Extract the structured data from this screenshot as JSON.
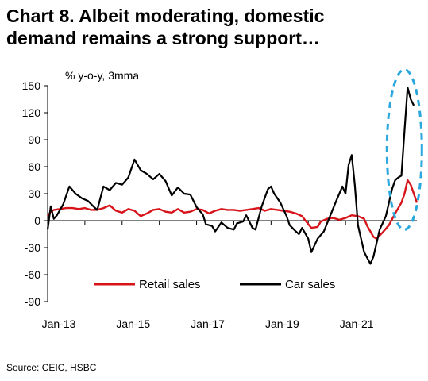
{
  "title_line1": "Chart 8. Albeit moderating, domestic",
  "title_line2": "demand remains a strong support…",
  "source": "Source: CEIC, HSBC",
  "chart_data": {
    "type": "line",
    "unit_note": "% y-o-y, 3mma",
    "ylim": [
      -90,
      150
    ],
    "yticks": [
      "150",
      "120",
      "90",
      "60",
      "30",
      "0",
      "-30",
      "-60",
      "-90"
    ],
    "xlim": [
      "2013-01",
      "2022-12"
    ],
    "xticks": [
      {
        "label": "Jan-13",
        "date": "2013-01"
      },
      {
        "label": "Jan-15",
        "date": "2015-01"
      },
      {
        "label": "Jan-17",
        "date": "2017-01"
      },
      {
        "label": "Jan-19",
        "date": "2019-01"
      },
      {
        "label": "Jan-21",
        "date": "2021-01"
      }
    ],
    "grid": false,
    "legend_position": "bottom",
    "highlight": "dashed ellipse around latest car sales spike",
    "colors": {
      "retail": "#d7141a",
      "car": "#000000",
      "highlight": "#2aa7dd"
    },
    "series": [
      {
        "name": "Retail sales",
        "color": "#d7141a",
        "points": [
          [
            "2013-01",
            5
          ],
          [
            "2013-02",
            10
          ],
          [
            "2013-03",
            12
          ],
          [
            "2013-05",
            13
          ],
          [
            "2013-07",
            14
          ],
          [
            "2013-09",
            14
          ],
          [
            "2013-11",
            13
          ],
          [
            "2014-01",
            14
          ],
          [
            "2014-03",
            12
          ],
          [
            "2014-05",
            12
          ],
          [
            "2014-07",
            14
          ],
          [
            "2014-09",
            17
          ],
          [
            "2014-11",
            11
          ],
          [
            "2015-01",
            9
          ],
          [
            "2015-03",
            13
          ],
          [
            "2015-05",
            11
          ],
          [
            "2015-07",
            5
          ],
          [
            "2015-09",
            8
          ],
          [
            "2015-11",
            12
          ],
          [
            "2016-01",
            13
          ],
          [
            "2016-03",
            10
          ],
          [
            "2016-05",
            9
          ],
          [
            "2016-07",
            13
          ],
          [
            "2016-09",
            9
          ],
          [
            "2016-11",
            10
          ],
          [
            "2017-01",
            13
          ],
          [
            "2017-03",
            12
          ],
          [
            "2017-05",
            8
          ],
          [
            "2017-07",
            11
          ],
          [
            "2017-09",
            13
          ],
          [
            "2017-11",
            12
          ],
          [
            "2018-01",
            12
          ],
          [
            "2018-03",
            11
          ],
          [
            "2018-05",
            12
          ],
          [
            "2018-07",
            13
          ],
          [
            "2018-09",
            14
          ],
          [
            "2018-11",
            11
          ],
          [
            "2019-01",
            13
          ],
          [
            "2019-03",
            12
          ],
          [
            "2019-05",
            11
          ],
          [
            "2019-07",
            10
          ],
          [
            "2019-09",
            8
          ],
          [
            "2019-11",
            5
          ],
          [
            "2020-01",
            -4
          ],
          [
            "2020-02",
            -8
          ],
          [
            "2020-04",
            -7
          ],
          [
            "2020-05",
            -1
          ],
          [
            "2020-07",
            2
          ],
          [
            "2020-09",
            3
          ],
          [
            "2020-11",
            1
          ],
          [
            "2021-01",
            3
          ],
          [
            "2021-03",
            6
          ],
          [
            "2021-05",
            5
          ],
          [
            "2021-07",
            2
          ],
          [
            "2021-08",
            -6
          ],
          [
            "2021-10",
            -18
          ],
          [
            "2021-11",
            -20
          ],
          [
            "2022-01",
            -13
          ],
          [
            "2022-03",
            -5
          ],
          [
            "2022-05",
            8
          ],
          [
            "2022-07",
            20
          ],
          [
            "2022-08",
            30
          ],
          [
            "2022-09",
            45
          ],
          [
            "2022-10",
            40
          ],
          [
            "2022-11",
            30
          ],
          [
            "2022-12",
            20
          ]
        ]
      },
      {
        "name": "Car sales",
        "color": "#000000",
        "points": [
          [
            "2013-01",
            -10
          ],
          [
            "2013-02",
            16
          ],
          [
            "2013-03",
            2
          ],
          [
            "2013-04",
            6
          ],
          [
            "2013-06",
            18
          ],
          [
            "2013-08",
            38
          ],
          [
            "2013-10",
            30
          ],
          [
            "2013-12",
            25
          ],
          [
            "2014-02",
            22
          ],
          [
            "2014-04",
            15
          ],
          [
            "2014-05",
            12
          ],
          [
            "2014-07",
            38
          ],
          [
            "2014-09",
            34
          ],
          [
            "2014-11",
            42
          ],
          [
            "2015-01",
            40
          ],
          [
            "2015-03",
            48
          ],
          [
            "2015-05",
            68
          ],
          [
            "2015-07",
            56
          ],
          [
            "2015-09",
            52
          ],
          [
            "2015-11",
            46
          ],
          [
            "2016-01",
            52
          ],
          [
            "2016-03",
            44
          ],
          [
            "2016-05",
            28
          ],
          [
            "2016-07",
            37
          ],
          [
            "2016-09",
            30
          ],
          [
            "2016-11",
            29
          ],
          [
            "2017-01",
            15
          ],
          [
            "2017-03",
            7
          ],
          [
            "2017-04",
            -4
          ],
          [
            "2017-06",
            -6
          ],
          [
            "2017-07",
            -12
          ],
          [
            "2017-09",
            -2
          ],
          [
            "2017-11",
            -8
          ],
          [
            "2018-01",
            -10
          ],
          [
            "2018-02",
            -3
          ],
          [
            "2018-04",
            -1
          ],
          [
            "2018-05",
            6
          ],
          [
            "2018-07",
            -8
          ],
          [
            "2018-08",
            -10
          ],
          [
            "2018-10",
            16
          ],
          [
            "2018-12",
            35
          ],
          [
            "2019-01",
            38
          ],
          [
            "2019-02",
            30
          ],
          [
            "2019-04",
            20
          ],
          [
            "2019-06",
            5
          ],
          [
            "2019-07",
            -5
          ],
          [
            "2019-09",
            -12
          ],
          [
            "2019-10",
            -15
          ],
          [
            "2019-11",
            -8
          ],
          [
            "2020-01",
            -20
          ],
          [
            "2020-02",
            -35
          ],
          [
            "2020-04",
            -20
          ],
          [
            "2020-06",
            -12
          ],
          [
            "2020-08",
            5
          ],
          [
            "2020-10",
            22
          ],
          [
            "2020-12",
            38
          ],
          [
            "2021-01",
            30
          ],
          [
            "2021-02",
            62
          ],
          [
            "2021-03",
            73
          ],
          [
            "2021-04",
            40
          ],
          [
            "2021-05",
            -5
          ],
          [
            "2021-07",
            -35
          ],
          [
            "2021-09",
            -48
          ],
          [
            "2021-10",
            -40
          ],
          [
            "2021-12",
            -10
          ],
          [
            "2022-02",
            5
          ],
          [
            "2022-03",
            20
          ],
          [
            "2022-04",
            35
          ],
          [
            "2022-05",
            45
          ],
          [
            "2022-06",
            48
          ],
          [
            "2022-07",
            50
          ],
          [
            "2022-08",
            100
          ],
          [
            "2022-09",
            148
          ],
          [
            "2022-10",
            135
          ],
          [
            "2022-11",
            128
          ]
        ]
      }
    ]
  }
}
